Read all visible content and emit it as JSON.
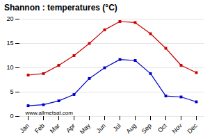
{
  "chart_data": {
    "type": "line",
    "title": "Shannon : temperatures (°C)",
    "categories": [
      "Jan",
      "Feb",
      "Mar",
      "Apr",
      "May",
      "Jun",
      "Jul",
      "Aug",
      "Sep",
      "Oct",
      "Nov",
      "Dec"
    ],
    "series": [
      {
        "color": "#cc0000",
        "marker": "square",
        "values": [
          8.5,
          8.8,
          10.5,
          12.5,
          15.0,
          17.8,
          19.5,
          19.3,
          17.0,
          14.0,
          10.5,
          9.0
        ]
      },
      {
        "color": "#0000cc",
        "marker": "square",
        "values": [
          2.2,
          2.4,
          3.2,
          4.5,
          7.8,
          10.0,
          11.7,
          11.5,
          8.8,
          4.2,
          4.0,
          3.0
        ]
      }
    ],
    "ylim": [
      0,
      20
    ],
    "yticks": [
      0,
      5,
      10,
      15,
      20
    ],
    "grid": true,
    "annotations": [
      "www.allmetsat.com"
    ]
  }
}
